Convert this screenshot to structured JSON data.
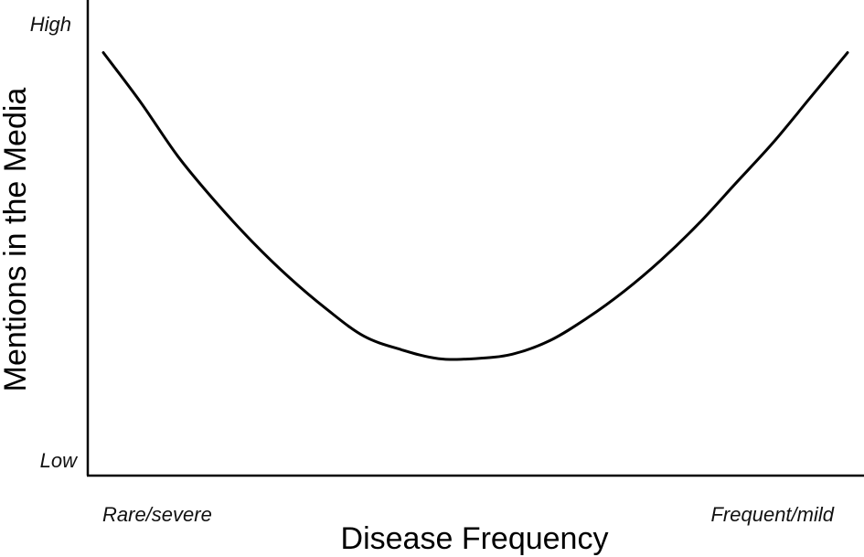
{
  "chart_data": {
    "type": "line",
    "title": "",
    "xlabel": "Disease Frequency",
    "ylabel": "Mentions in the Media",
    "x_tick_labels": [
      "Rare/severe",
      "Frequent/mild"
    ],
    "y_tick_labels": [
      "Low",
      "High"
    ],
    "xlim": [
      0,
      1
    ],
    "ylim": [
      0,
      1
    ],
    "grid": false,
    "legend": "none",
    "series": [
      {
        "color": "#000000",
        "x": [
          0.0,
          0.05,
          0.1,
          0.15,
          0.2,
          0.25,
          0.3,
          0.35,
          0.4,
          0.45,
          0.5,
          0.55,
          0.6,
          0.65,
          0.7,
          0.75,
          0.8,
          0.85,
          0.9,
          0.95,
          1.0
        ],
        "y": [
          0.94,
          0.83,
          0.71,
          0.61,
          0.52,
          0.44,
          0.37,
          0.31,
          0.28,
          0.26,
          0.26,
          0.27,
          0.3,
          0.35,
          0.41,
          0.48,
          0.56,
          0.65,
          0.74,
          0.84,
          0.94
        ]
      }
    ]
  }
}
